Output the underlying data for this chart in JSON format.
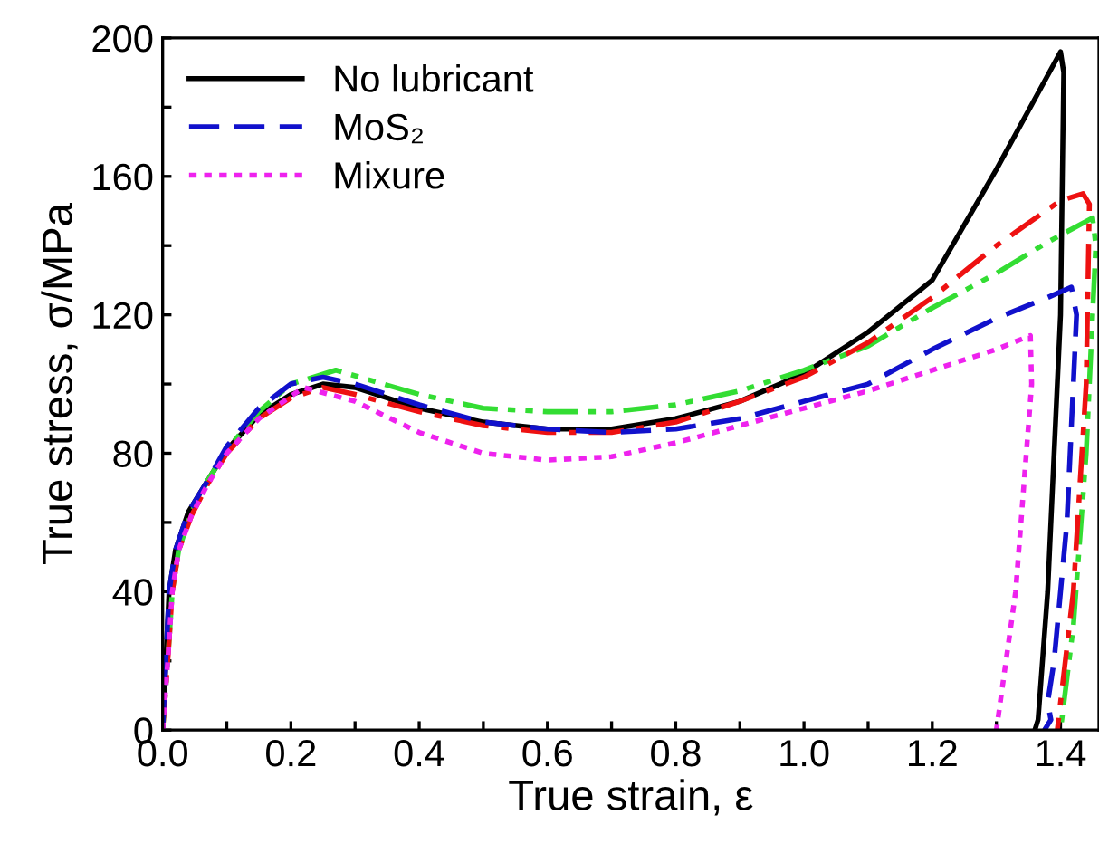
{
  "chart_data": {
    "type": "line",
    "xlabel": "True strain, ε",
    "ylabel": "True stress, σ/MPa",
    "xlim": [
      0,
      1.46
    ],
    "ylim": [
      0,
      200
    ],
    "xticks": [
      {
        "value": 0,
        "label": "0.0"
      },
      {
        "value": 0.1,
        "label": null
      },
      {
        "value": 0.2,
        "label": "0.2"
      },
      {
        "value": 0.3,
        "label": null
      },
      {
        "value": 0.4,
        "label": "0.4"
      },
      {
        "value": 0.5,
        "label": null
      },
      {
        "value": 0.6,
        "label": "0.6"
      },
      {
        "value": 0.7,
        "label": null
      },
      {
        "value": 0.8,
        "label": "0.8"
      },
      {
        "value": 0.9,
        "label": null
      },
      {
        "value": 1.0,
        "label": "1.0"
      },
      {
        "value": 1.1,
        "label": null
      },
      {
        "value": 1.2,
        "label": "1.2"
      },
      {
        "value": 1.3,
        "label": null
      },
      {
        "value": 1.4,
        "label": "1.4"
      }
    ],
    "yticks": [
      0,
      {
        "value": 20,
        "label": null
      },
      40,
      {
        "value": 60,
        "label": null
      },
      80,
      {
        "value": 100,
        "label": null
      },
      120,
      {
        "value": 140,
        "label": null
      },
      160,
      {
        "value": 180,
        "label": null
      },
      200
    ],
    "legend": "top left",
    "grid": false,
    "series": [
      {
        "name": "No lubricant",
        "color": "#000000",
        "line_style": "solid",
        "x": [
          0,
          0.005,
          0.01,
          0.02,
          0.04,
          0.07,
          0.1,
          0.15,
          0.2,
          0.25,
          0.3,
          0.4,
          0.5,
          0.6,
          0.7,
          0.8,
          0.9,
          1.0,
          1.1,
          1.2,
          1.3,
          1.4,
          1.405,
          1.4,
          1.38,
          1.365,
          1.36
        ],
        "values": [
          0,
          20,
          40,
          52,
          63,
          72,
          81,
          91,
          97,
          100,
          99,
          93,
          89,
          87,
          87,
          90,
          95,
          103,
          115,
          130,
          162,
          196,
          190,
          120,
          40,
          3,
          0
        ]
      },
      {
        "color": "#33dd33",
        "line_style": "dashdotdot",
        "x": [
          0,
          0.008,
          0.015,
          0.025,
          0.045,
          0.07,
          0.1,
          0.15,
          0.2,
          0.27,
          0.4,
          0.5,
          0.6,
          0.7,
          0.8,
          0.9,
          1.0,
          1.1,
          1.2,
          1.3,
          1.38,
          1.45,
          1.455,
          1.44,
          1.42,
          1.4
        ],
        "values": [
          0,
          20,
          40,
          52,
          63,
          72,
          81,
          92,
          100,
          104,
          97,
          93,
          92,
          92,
          94,
          98,
          104,
          111,
          122,
          132,
          141,
          148,
          140,
          80,
          30,
          0
        ]
      },
      {
        "color": "#ee1111",
        "line_style": "dashdot",
        "x": [
          0,
          0.008,
          0.015,
          0.025,
          0.045,
          0.07,
          0.1,
          0.15,
          0.2,
          0.25,
          0.3,
          0.4,
          0.5,
          0.6,
          0.7,
          0.8,
          0.9,
          1.0,
          1.1,
          1.2,
          1.3,
          1.4,
          1.435,
          1.445,
          1.44,
          1.42,
          1.395
        ],
        "values": [
          0,
          20,
          40,
          52,
          62,
          71,
          80,
          90,
          96,
          99,
          97,
          92,
          88,
          86,
          86,
          89,
          95,
          102,
          112,
          125,
          140,
          153,
          155,
          152,
          100,
          40,
          0
        ]
      },
      {
        "name": "MoS₂",
        "color": "#1111cc",
        "line_style": "dashed",
        "x": [
          0,
          0.005,
          0.01,
          0.02,
          0.04,
          0.07,
          0.1,
          0.15,
          0.2,
          0.25,
          0.3,
          0.4,
          0.5,
          0.6,
          0.7,
          0.8,
          0.9,
          1.0,
          1.1,
          1.2,
          1.3,
          1.38,
          1.417,
          1.425,
          1.41,
          1.39,
          1.38,
          1.385,
          1.375
        ],
        "values": [
          0,
          20,
          40,
          52,
          63,
          72,
          82,
          93,
          100,
          102,
          100,
          94,
          89,
          87,
          86,
          87,
          90,
          95,
          100,
          110,
          119,
          125,
          128,
          120,
          60,
          20,
          8,
          3,
          0
        ]
      },
      {
        "name": "Mixure",
        "color": "#ee22ee",
        "line_style": "dotted",
        "x": [
          0,
          0.008,
          0.015,
          0.025,
          0.045,
          0.07,
          0.1,
          0.15,
          0.22,
          0.3,
          0.4,
          0.5,
          0.6,
          0.7,
          0.8,
          0.9,
          1.0,
          1.1,
          1.2,
          1.3,
          1.353,
          1.355,
          1.33,
          1.3
        ],
        "values": [
          0,
          20,
          40,
          52,
          62,
          71,
          80,
          90,
          99,
          95,
          86,
          80,
          78,
          79,
          83,
          88,
          93,
          98,
          104,
          110,
          114,
          100,
          40,
          0
        ]
      }
    ]
  }
}
